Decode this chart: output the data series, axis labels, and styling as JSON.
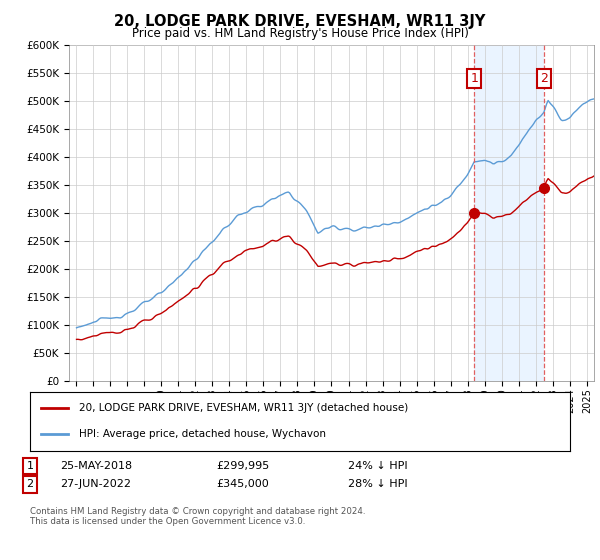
{
  "title": "20, LODGE PARK DRIVE, EVESHAM, WR11 3JY",
  "subtitle": "Price paid vs. HM Land Registry's House Price Index (HPI)",
  "legend_line1": "20, LODGE PARK DRIVE, EVESHAM, WR11 3JY (detached house)",
  "legend_line2": "HPI: Average price, detached house, Wychavon",
  "footer": "Contains HM Land Registry data © Crown copyright and database right 2024.\nThis data is licensed under the Open Government Licence v3.0.",
  "sale1_label": "1",
  "sale1_date": "25-MAY-2018",
  "sale1_price": "£299,995",
  "sale1_hpi": "24% ↓ HPI",
  "sale1_price_val": 299995,
  "sale1_year": 2018.37,
  "sale2_label": "2",
  "sale2_date": "27-JUN-2022",
  "sale2_price": "£345,000",
  "sale2_hpi": "28% ↓ HPI",
  "sale2_price_val": 345000,
  "sale2_year": 2022.46,
  "ylim": [
    0,
    600000
  ],
  "yticks": [
    0,
    50000,
    100000,
    150000,
    200000,
    250000,
    300000,
    350000,
    400000,
    450000,
    500000,
    550000,
    600000
  ],
  "hpi_color": "#5b9bd5",
  "sale_color": "#c00000",
  "vline_color": "#e06060",
  "shade_color": "#ddeeff",
  "background_color": "#ffffff",
  "grid_color": "#cccccc",
  "anno_box_color": "#c00000"
}
